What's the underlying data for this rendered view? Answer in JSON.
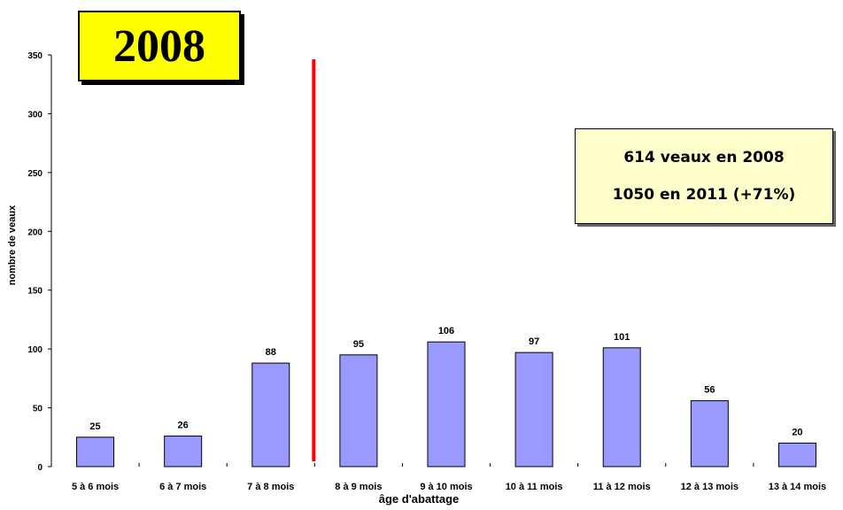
{
  "chart_data": {
    "type": "bar",
    "categories": [
      "5 à 6 mois",
      "6 à 7 mois",
      "7 à 8 mois",
      "8 à 9 mois",
      "9 à 10 mois",
      "10 à 11 mois",
      "11 à 12 mois",
      "12 à 13 mois",
      "13 à 14 mois"
    ],
    "values": [
      25,
      26,
      88,
      95,
      106,
      97,
      101,
      56,
      20
    ],
    "data_labels": [
      "25",
      "26",
      "88",
      "95",
      "106",
      "97",
      "101",
      "56",
      "20"
    ],
    "xlabel": "âge d'abattage",
    "ylabel": "nombre de veaux",
    "ylim": [
      0,
      350
    ],
    "yticks": [
      0,
      50,
      100,
      150,
      200,
      250,
      300,
      350
    ],
    "grid": false,
    "bar_color": "#9999ff",
    "marker_line_color": "#ff0000"
  },
  "year_label": "2008",
  "info": {
    "line1": "614 veaux en 2008",
    "line2": "1050 en 2011 (+71%)"
  }
}
